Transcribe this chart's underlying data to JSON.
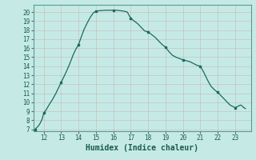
{
  "title": "",
  "xlabel": "Humidex (Indice chaleur)",
  "ylabel": "",
  "background_color": "#c5eae6",
  "grid_color_major": "#b8dbd7",
  "grid_color_minor": "#d0ecea",
  "line_color": "#1a6b5a",
  "marker_color": "#1a6b5a",
  "x_ticks": [
    12,
    13,
    14,
    15,
    16,
    17,
    18,
    19,
    20,
    21,
    22,
    23
  ],
  "y_ticks": [
    7,
    8,
    9,
    10,
    11,
    12,
    13,
    14,
    15,
    16,
    17,
    18,
    19,
    20
  ],
  "xlim": [
    11.4,
    23.9
  ],
  "ylim": [
    6.8,
    20.8
  ],
  "marker_x": [
    11.5,
    12.0,
    13.0,
    14.0,
    15.0,
    16.0,
    17.0,
    18.0,
    19.0,
    20.0,
    21.0,
    22.0,
    23.0
  ],
  "marker_y": [
    7.0,
    8.8,
    12.2,
    16.4,
    20.1,
    20.2,
    19.3,
    17.8,
    16.1,
    14.7,
    14.0,
    11.1,
    9.4
  ],
  "dense_x": [
    11.5,
    11.6,
    11.7,
    11.8,
    11.9,
    12.0,
    12.15,
    12.3,
    12.5,
    12.7,
    12.85,
    13.0,
    13.15,
    13.3,
    13.5,
    13.7,
    13.85,
    14.0,
    14.15,
    14.3,
    14.5,
    14.7,
    14.85,
    15.0,
    15.2,
    15.4,
    15.6,
    15.8,
    16.0,
    16.2,
    16.4,
    16.6,
    16.8,
    17.0,
    17.2,
    17.4,
    17.6,
    17.8,
    18.0,
    18.2,
    18.4,
    18.6,
    18.8,
    19.0,
    19.2,
    19.4,
    19.6,
    19.8,
    20.0,
    20.2,
    20.4,
    20.6,
    20.8,
    21.0,
    21.2,
    21.4,
    21.6,
    21.8,
    22.0,
    22.1,
    22.2,
    22.3,
    22.4,
    22.5,
    22.6,
    22.7,
    22.8,
    22.9,
    23.0,
    23.1,
    23.2,
    23.3,
    23.4,
    23.5,
    23.6
  ],
  "dense_y": [
    7.0,
    7.2,
    7.4,
    7.7,
    8.1,
    8.8,
    9.2,
    9.7,
    10.3,
    11.0,
    11.6,
    12.2,
    12.8,
    13.4,
    14.3,
    15.3,
    15.9,
    16.4,
    17.2,
    18.0,
    18.8,
    19.5,
    19.9,
    20.1,
    20.15,
    20.18,
    20.2,
    20.2,
    20.2,
    20.2,
    20.15,
    20.1,
    20.0,
    19.3,
    19.0,
    18.7,
    18.3,
    17.9,
    17.8,
    17.5,
    17.2,
    16.8,
    16.4,
    16.1,
    15.6,
    15.2,
    15.0,
    14.85,
    14.7,
    14.6,
    14.5,
    14.3,
    14.1,
    14.0,
    13.3,
    12.5,
    11.8,
    11.4,
    11.1,
    10.9,
    10.7,
    10.5,
    10.3,
    10.1,
    9.9,
    9.7,
    9.6,
    9.5,
    9.4,
    9.5,
    9.6,
    9.7,
    9.6,
    9.4,
    9.3
  ]
}
